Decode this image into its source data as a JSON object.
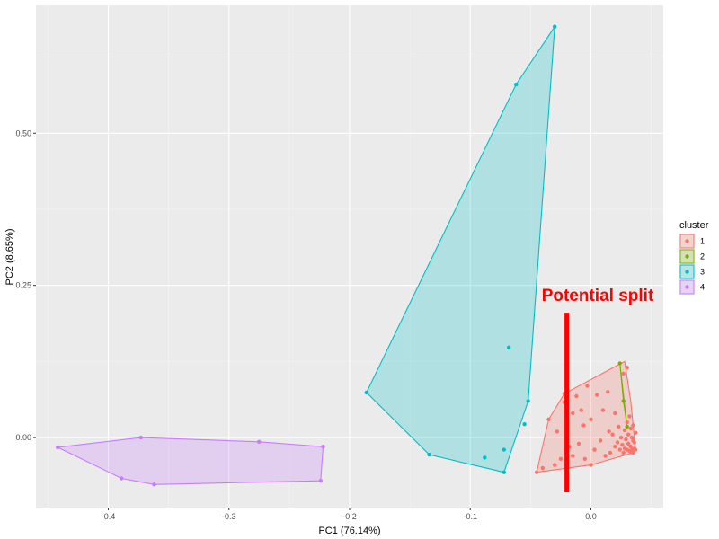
{
  "chart_data": {
    "type": "scatter",
    "xlabel": "PC1 (76.14%)",
    "ylabel": "PC2 (8.65%)",
    "xlim": [
      -0.46,
      0.06
    ],
    "ylim": [
      -0.115,
      0.71
    ],
    "x_ticks": [
      -0.4,
      -0.3,
      -0.2,
      -0.1,
      0.0
    ],
    "x_tick_labels": [
      "-0.4",
      "-0.3",
      "-0.2",
      "-0.1",
      "0.0"
    ],
    "y_ticks": [
      0.0,
      0.25,
      0.5
    ],
    "y_tick_labels": [
      "0.00",
      "0.25",
      "0.50"
    ],
    "grid": true,
    "legend": {
      "title": "cluster",
      "placement": "right",
      "entries": [
        "1",
        "2",
        "3",
        "4"
      ]
    },
    "series": [
      {
        "name": "1",
        "color": "#F8766D",
        "fill": "#F8766D",
        "hull": [
          [
            -0.045,
            -0.057
          ],
          [
            -0.035,
            0.03
          ],
          [
            -0.022,
            0.072
          ],
          [
            0.028,
            0.125
          ],
          [
            0.033,
            0.06
          ],
          [
            0.037,
            -0.02
          ],
          [
            0.035,
            -0.025
          ],
          [
            0.0,
            -0.045
          ]
        ],
        "points": [
          [
            -0.045,
            -0.057
          ],
          [
            -0.04,
            -0.05
          ],
          [
            -0.035,
            0.03
          ],
          [
            -0.03,
            -0.045
          ],
          [
            -0.028,
            0.01
          ],
          [
            -0.025,
            -0.035
          ],
          [
            -0.022,
            0.072
          ],
          [
            -0.022,
            0.058
          ],
          [
            -0.02,
            0.025
          ],
          [
            -0.018,
            -0.015
          ],
          [
            -0.015,
            0.04
          ],
          [
            -0.015,
            -0.03
          ],
          [
            -0.012,
            0.068
          ],
          [
            -0.01,
            -0.01
          ],
          [
            -0.008,
            0.045
          ],
          [
            -0.006,
            0.02
          ],
          [
            -0.005,
            -0.035
          ],
          [
            -0.003,
            0.085
          ],
          [
            0.0,
            0.03
          ],
          [
            0.0,
            -0.045
          ],
          [
            0.003,
            -0.02
          ],
          [
            0.005,
            0.07
          ],
          [
            0.008,
            -0.005
          ],
          [
            0.01,
            0.045
          ],
          [
            0.012,
            -0.03
          ],
          [
            0.014,
            0.075
          ],
          [
            0.015,
            0.01
          ],
          [
            0.016,
            -0.025
          ],
          [
            0.018,
            0.005
          ],
          [
            0.02,
            -0.015
          ],
          [
            0.02,
            0.04
          ],
          [
            0.022,
            -0.008
          ],
          [
            0.023,
            0.018
          ],
          [
            0.024,
            -0.02
          ],
          [
            0.025,
            0.0
          ],
          [
            0.026,
            -0.012
          ],
          [
            0.027,
            0.105
          ],
          [
            0.027,
            -0.025
          ],
          [
            0.028,
            0.012
          ],
          [
            0.028,
            -0.018
          ],
          [
            0.029,
            -0.003
          ],
          [
            0.03,
            0.115
          ],
          [
            0.03,
            0.025
          ],
          [
            0.03,
            -0.02
          ],
          [
            0.031,
            0.005
          ],
          [
            0.031,
            -0.01
          ],
          [
            0.032,
            0.035
          ],
          [
            0.032,
            -0.022
          ],
          [
            0.033,
            0.015
          ],
          [
            0.033,
            -0.015
          ],
          [
            0.034,
            0.0
          ],
          [
            0.034,
            -0.02
          ],
          [
            0.035,
            -0.005
          ],
          [
            0.035,
            0.02
          ],
          [
            0.036,
            -0.018
          ],
          [
            0.036,
            -0.008
          ],
          [
            0.037,
            -0.02
          ],
          [
            0.037,
            0.008
          ],
          [
            0.035,
            -0.025
          ],
          [
            0.033,
            -0.024
          ]
        ]
      },
      {
        "name": "2",
        "color": "#7CAE00",
        "fill": "#7CAE00",
        "hull": [
          [
            0.024,
            0.122
          ],
          [
            0.027,
            0.06
          ],
          [
            0.03,
            0.018
          ]
        ],
        "points": [
          [
            0.024,
            0.122
          ],
          [
            0.027,
            0.06
          ],
          [
            0.03,
            0.018
          ]
        ]
      },
      {
        "name": "3",
        "color": "#00BFC4",
        "fill": "#00BFC4",
        "hull": [
          [
            -0.186,
            0.074
          ],
          [
            -0.134,
            -0.028
          ],
          [
            -0.072,
            -0.057
          ],
          [
            -0.052,
            0.06
          ],
          [
            -0.03,
            0.675
          ],
          [
            -0.062,
            0.58
          ]
        ],
        "points": [
          [
            -0.03,
            0.675
          ],
          [
            -0.062,
            0.58
          ],
          [
            -0.186,
            0.074
          ],
          [
            -0.134,
            -0.028
          ],
          [
            -0.072,
            -0.057
          ],
          [
            -0.052,
            0.06
          ],
          [
            -0.055,
            0.022
          ],
          [
            -0.068,
            0.148
          ],
          [
            -0.072,
            -0.02
          ],
          [
            -0.088,
            -0.033
          ]
        ]
      },
      {
        "name": "4",
        "color": "#C77CFF",
        "fill": "#C77CFF",
        "hull": [
          [
            -0.442,
            -0.016
          ],
          [
            -0.373,
            0.0
          ],
          [
            -0.275,
            -0.007
          ],
          [
            -0.222,
            -0.015
          ],
          [
            -0.224,
            -0.071
          ],
          [
            -0.362,
            -0.077
          ],
          [
            -0.389,
            -0.067
          ]
        ],
        "points": [
          [
            -0.442,
            -0.016
          ],
          [
            -0.373,
            0.0
          ],
          [
            -0.275,
            -0.007
          ],
          [
            -0.222,
            -0.015
          ],
          [
            -0.224,
            -0.071
          ],
          [
            -0.362,
            -0.077
          ],
          [
            -0.389,
            -0.067
          ]
        ]
      }
    ],
    "annotation": {
      "text": "Potential split",
      "color": "#ff0000",
      "line": [
        [
          -0.02,
          0.205
        ],
        [
          -0.02,
          -0.09
        ]
      ]
    }
  }
}
